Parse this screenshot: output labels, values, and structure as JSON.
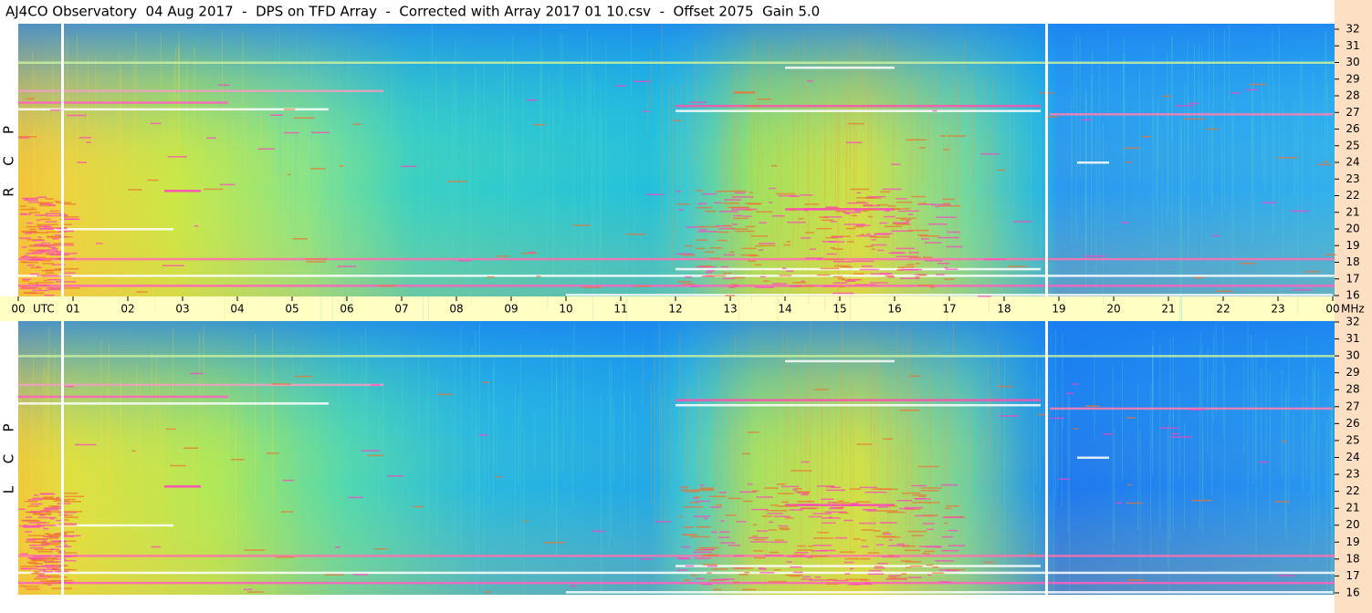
{
  "header": {
    "title": "AJ4CO Observatory  04 Aug 2017  -  DPS on TFD Array  -  Corrected with Array 2017 01 10.csv  -  Offset 2075  Gain 5.0"
  },
  "panels": [
    {
      "letters": [
        "R",
        "C",
        "P"
      ]
    },
    {
      "letters": [
        "L",
        "C",
        "P"
      ]
    }
  ],
  "time_axis": {
    "hours": [
      "00",
      "01",
      "02",
      "03",
      "04",
      "05",
      "06",
      "07",
      "08",
      "09",
      "10",
      "11",
      "12",
      "13",
      "14",
      "15",
      "16",
      "17",
      "18",
      "19",
      "20",
      "21",
      "22",
      "23",
      "00"
    ],
    "start_unit": "UTC",
    "end_unit": "MHz"
  },
  "frequency_axis": {
    "labels": [
      "32",
      "31",
      "30",
      "29",
      "28",
      "27",
      "26",
      "25",
      "24",
      "23",
      "22",
      "21",
      "20",
      "19",
      "18",
      "17",
      "16"
    ]
  }
}
